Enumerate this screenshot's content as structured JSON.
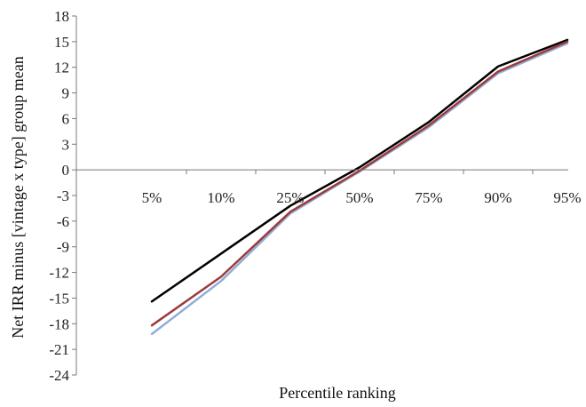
{
  "chart_data": {
    "type": "line",
    "categories": [
      "5%",
      "10%",
      "25%",
      "50%",
      "75%",
      "90%",
      "95%"
    ],
    "xlabel": "Percentile ranking",
    "ylabel": "Net IRR minus [vintage x type] group mean",
    "ylim": [
      -24,
      18
    ],
    "y_ticks": [
      "18",
      "15",
      "12",
      "9",
      "6",
      "3",
      "0",
      "-3",
      "-6",
      "-9",
      "-12",
      "-15",
      "-18",
      "-21",
      "-24"
    ],
    "grid": false,
    "legend": "none",
    "series": [
      {
        "color": "#000000",
        "values": [
          -15.4,
          -9.8,
          -4.2,
          0.3,
          5.6,
          12.1,
          15.2
        ]
      },
      {
        "color": "#8fadd8",
        "values": [
          -19.2,
          -13.0,
          -5.1,
          -0.2,
          5.0,
          11.3,
          14.8
        ]
      },
      {
        "color": "#9e3a3a",
        "values": [
          -18.2,
          -12.5,
          -4.9,
          -0.1,
          5.2,
          11.5,
          15.0
        ]
      }
    ]
  }
}
